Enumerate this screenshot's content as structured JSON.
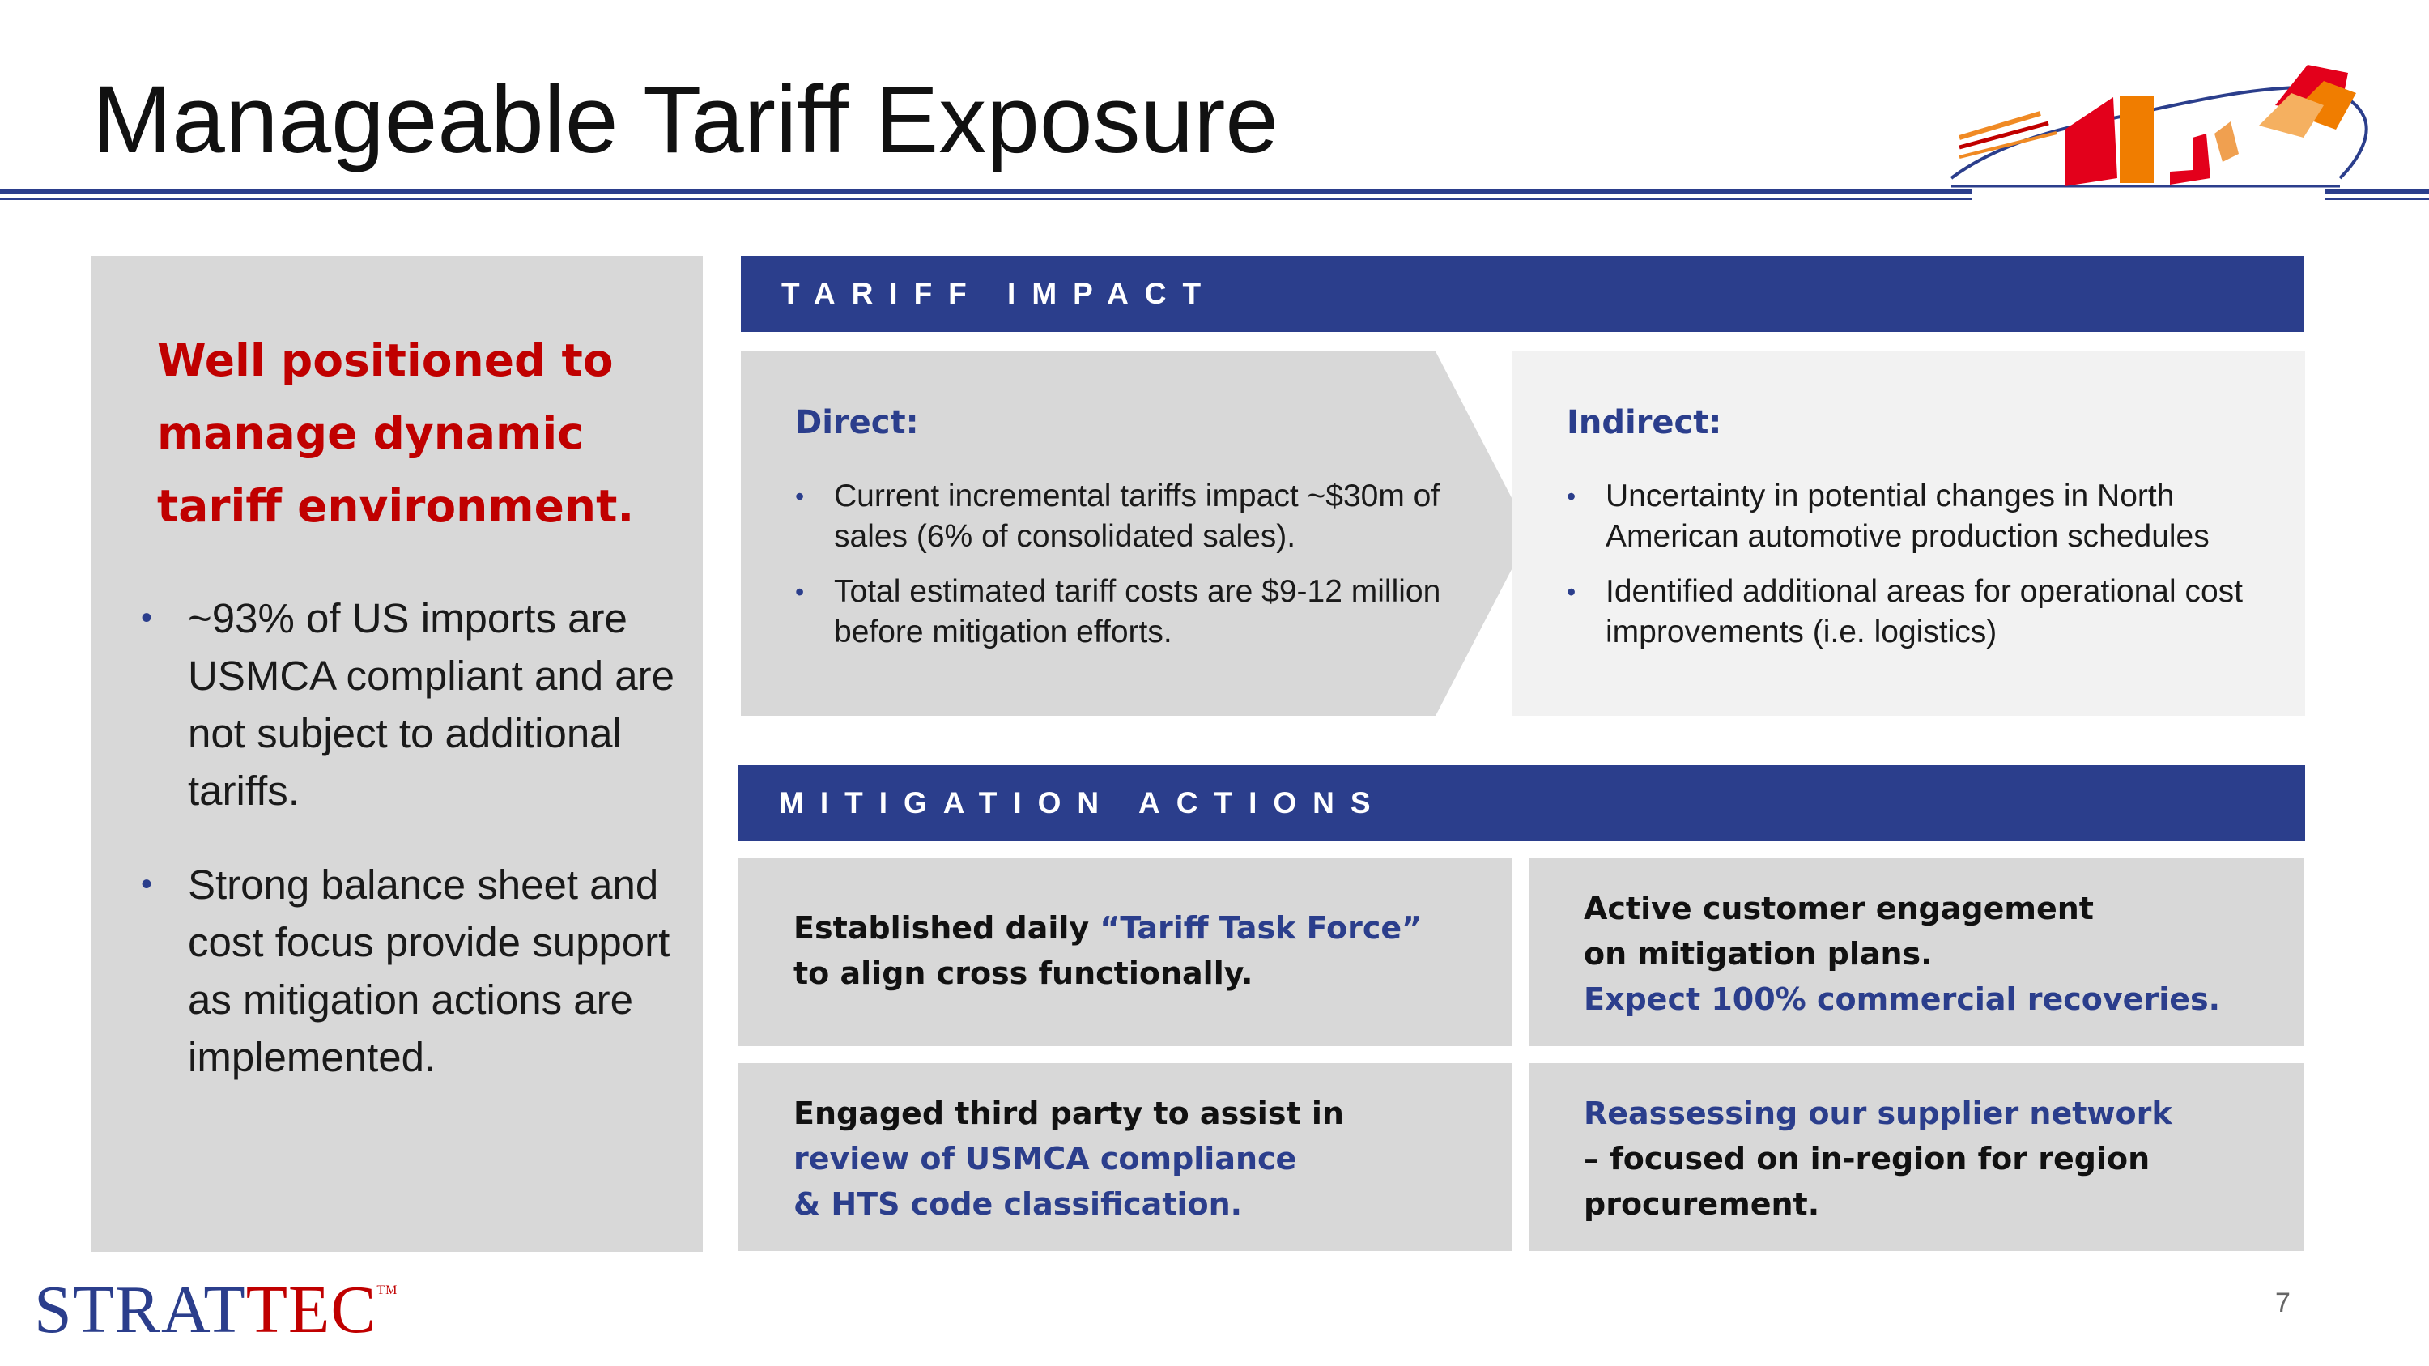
{
  "header": {
    "title": "Manageable Tariff Exposure"
  },
  "left_panel": {
    "headline": "Well positioned to manage dynamic tariff environment.",
    "bullets": [
      "~93% of US imports are USMCA compliant and are not subject to additional tariffs.",
      "Strong balance sheet and cost focus provide support as mitigation actions are implemented."
    ]
  },
  "tariff_impact": {
    "label": "TARIFF IMPACT",
    "direct": {
      "heading": "Direct:",
      "bullets": [
        "Current incremental tariffs impact ~$30m of sales (6% of consolidated sales).",
        "Total estimated tariff costs are $9-12 million before mitigation efforts."
      ]
    },
    "indirect": {
      "heading": "Indirect:",
      "bullets": [
        "Uncertainty in potential changes in North American automotive production schedules",
        "Identified additional areas for operational cost improvements (i.e. logistics)"
      ]
    }
  },
  "mitigation_actions": {
    "label": "MITIGATION ACTIONS",
    "cards": [
      {
        "line1_a": "Established daily ",
        "line1_b": "“Tariff Task Force”",
        "line2": "to align cross functionally."
      },
      {
        "line1": "Active customer engagement",
        "line2": "on mitigation plans.",
        "line3": "Expect 100% commercial recoveries."
      },
      {
        "line1": "Engaged third party to assist in",
        "line2": "review of USMCA compliance",
        "line3": "& HTS code classification."
      },
      {
        "line1": "Reassessing our supplier network",
        "line2": "– focused on in-region for region",
        "line3": "procurement."
      }
    ]
  },
  "footer": {
    "brand_a": "STRAT",
    "brand_b": "TEC",
    "trademark": "TM",
    "page_number": "7"
  },
  "colors": {
    "accent_blue": "#2b3e8c",
    "accent_red": "#c00000",
    "panel_gray": "#d8d8d8",
    "light_gray": "#f2f2f2"
  }
}
